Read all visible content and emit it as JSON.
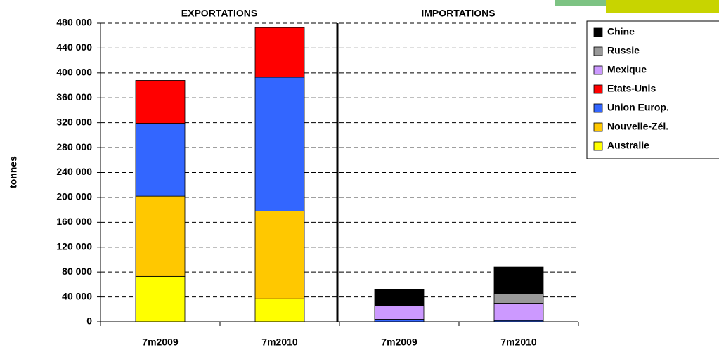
{
  "chart_data": {
    "type": "stacked_bar",
    "ylabel": "tonnes",
    "groups": [
      "EXPORTATIONS",
      "IMPORTATIONS"
    ],
    "categories": [
      "7m2009",
      "7m2010",
      "7m2009",
      "7m2010"
    ],
    "series": [
      {
        "name": "Australie",
        "color": "#ffff00",
        "values": [
          73000,
          37000,
          null,
          null
        ]
      },
      {
        "name": "Nouvelle-Zél.",
        "color": "#ffc800",
        "values": [
          129000,
          141000,
          null,
          null
        ]
      },
      {
        "name": "Union Europ.",
        "color": "#3366ff",
        "values": [
          117000,
          215000,
          4000,
          2000
        ]
      },
      {
        "name": "Etats-Unis",
        "color": "#ff0000",
        "values": [
          69000,
          80000,
          null,
          null
        ]
      },
      {
        "name": "Mexique",
        "color": "#cc99ff",
        "values": [
          null,
          null,
          21500,
          28000
        ]
      },
      {
        "name": "Russie",
        "color": "#999999",
        "values": [
          null,
          null,
          null,
          15000
        ]
      },
      {
        "name": "Chine",
        "color": "#000000",
        "values": [
          null,
          null,
          27000,
          43000
        ]
      }
    ],
    "ylim": [
      0,
      480000
    ],
    "yticks": [
      0,
      {
        "value": 40000,
        "label": "40 000"
      },
      {
        "value": 80000,
        "label": "80 000"
      },
      {
        "value": 120000,
        "label": "120 000"
      },
      {
        "value": 160000,
        "label": "160 000"
      },
      {
        "value": 200000,
        "label": "200 000"
      },
      {
        "value": 240000,
        "label": "240 000"
      },
      {
        "value": 280000,
        "label": "280 000"
      },
      {
        "value": 320000,
        "label": "320 000"
      },
      {
        "value": 360000,
        "label": "360 000"
      },
      {
        "value": 400000,
        "label": "400 000"
      },
      {
        "value": 440000,
        "label": "440 000"
      },
      {
        "value": 480000,
        "label": "480 000"
      }
    ],
    "grid": true
  }
}
